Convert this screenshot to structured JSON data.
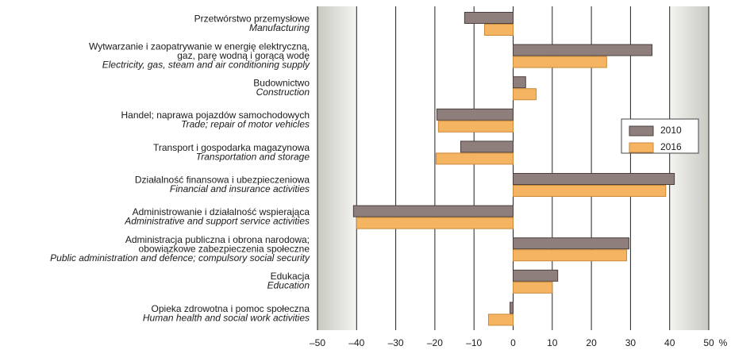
{
  "chart_data": {
    "type": "barh",
    "categories": [
      [
        "Przetwórstwo przemysłowe",
        "Manufacturing"
      ],
      [
        "Wytwarzanie i zaopatrywanie w energię elektryczną,",
        "gaz, parę wodną i gorącą wodę",
        "Electricity, gas, steam and air conditioning supply"
      ],
      [
        "Budownictwo",
        "Construction"
      ],
      [
        "Handel; naprawa pojazdów samochodowych",
        "Trade; repair of motor vehicles"
      ],
      [
        "Transport i gospodarka magazynowa",
        "Transportation and storage"
      ],
      [
        "Działalność finansowa i ubezpieczeniowa",
        "Financial and insurance activities"
      ],
      [
        "Administrowanie i działalność wspierająca",
        "Administrative and support service activities"
      ],
      [
        "Administracja publiczna i obrona narodowa;",
        "obowiązkowe zabezpieczenia społeczne",
        "Public administration and defence; compulsory social security"
      ],
      [
        "Edukacja",
        "Education"
      ],
      [
        "Opieka zdrowotna i pomoc społeczna",
        "Human health and social work activities"
      ]
    ],
    "series": [
      {
        "name": "2010",
        "color": "#8f7f7c",
        "values": [
          -12.4,
          35.5,
          3.2,
          -19.5,
          -13.4,
          41.2,
          -40.8,
          29.6,
          11.4,
          -0.8
        ]
      },
      {
        "name": "2016",
        "color": "#f5b462",
        "values": [
          -7.3,
          23.9,
          5.9,
          -19.1,
          -19.7,
          39.0,
          -40.0,
          29.0,
          10.0,
          -6.3
        ]
      }
    ],
    "xlim": [
      -50,
      50
    ],
    "xticks": [
      {
        "value": -50,
        "label": "–50"
      },
      {
        "value": -40,
        "label": "–40"
      },
      {
        "value": -30,
        "label": "–30"
      },
      {
        "value": -20,
        "label": "–20"
      },
      {
        "value": -10,
        "label": "–10"
      },
      0,
      10,
      20,
      30,
      40,
      50
    ],
    "x_label": "%",
    "grid": true,
    "legend": "right"
  }
}
